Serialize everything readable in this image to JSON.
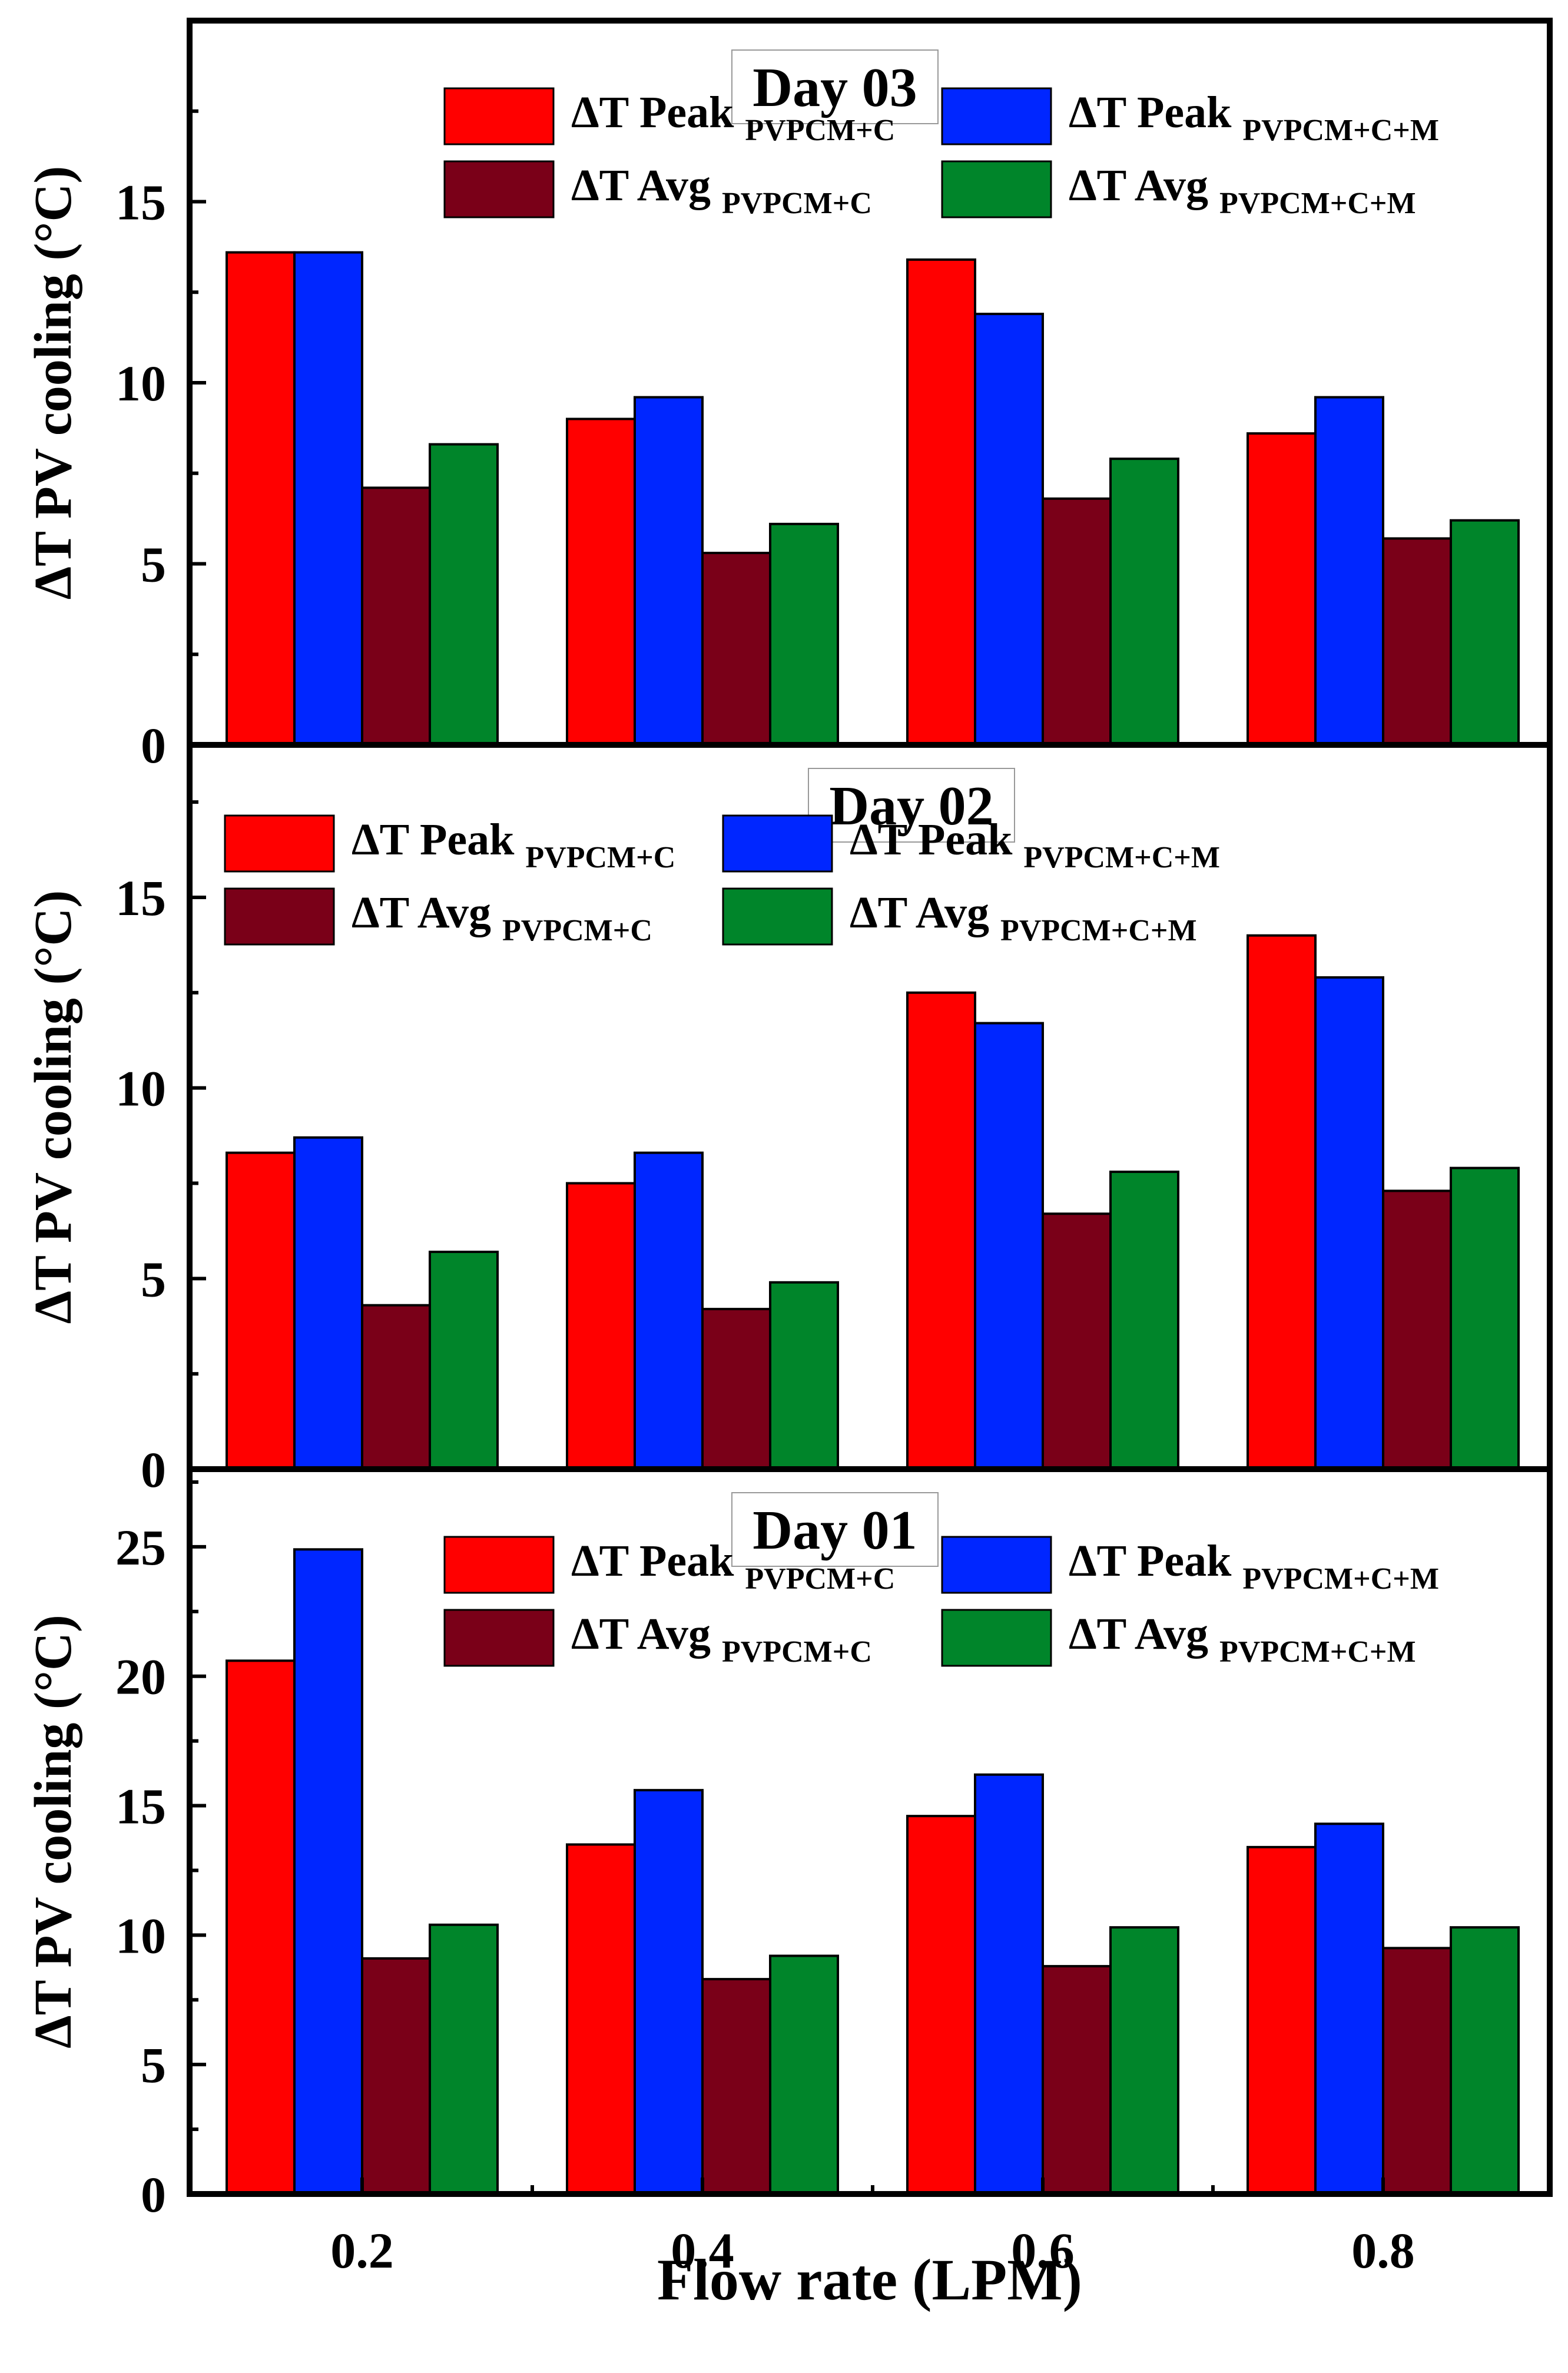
{
  "chart_data": {
    "type": "bar",
    "xlabel": "Flow rate (LPM)",
    "categories": [
      "0.2",
      "0.4",
      "0.6",
      "0.8"
    ],
    "colors": {
      "peak_c": "#ff0000",
      "peak_cm": "#0026ff",
      "avg_c": "#7a0018",
      "avg_cm": "#00852a",
      "title": "#7a0a7a"
    },
    "panels": [
      {
        "title": "Day 03",
        "ylabel": "ΔT PV cooling (°C)",
        "ylim": [
          0,
          20
        ],
        "yticks": [
          "0",
          "5",
          "10",
          "15"
        ],
        "legend_placement": "top-right",
        "series": [
          {
            "name": "ΔT Peak",
            "subscript": "PVPCM+C",
            "key": "peak_c",
            "values": [
              13.6,
              9.0,
              13.4,
              8.6
            ]
          },
          {
            "name": "ΔT Peak",
            "subscript": "PVPCM+C+M",
            "key": "peak_cm",
            "values": [
              13.6,
              9.6,
              11.9,
              9.6
            ]
          },
          {
            "name": "ΔT Avg",
            "subscript": "PVPCM+C",
            "key": "avg_c",
            "values": [
              7.1,
              5.3,
              6.8,
              5.7
            ]
          },
          {
            "name": "ΔT Avg",
            "subscript": "PVPCM+C+M",
            "key": "avg_cm",
            "values": [
              8.3,
              6.1,
              7.9,
              6.2
            ]
          }
        ]
      },
      {
        "title": "Day 02",
        "ylabel": "ΔT PV cooling (°C)",
        "ylim": [
          0,
          19
        ],
        "yticks": [
          "0",
          "5",
          "10",
          "15"
        ],
        "legend_placement": "top-left",
        "series": [
          {
            "name": "ΔT Peak",
            "subscript": "PVPCM+C",
            "key": "peak_c",
            "values": [
              8.3,
              7.5,
              12.5,
              14.0
            ]
          },
          {
            "name": "ΔT Peak",
            "subscript": "PVPCM+C+M",
            "key": "peak_cm",
            "values": [
              8.7,
              8.3,
              11.7,
              12.9
            ]
          },
          {
            "name": "ΔT Avg",
            "subscript": "PVPCM+C",
            "key": "avg_c",
            "values": [
              4.3,
              4.2,
              6.7,
              7.3
            ]
          },
          {
            "name": "ΔT Avg",
            "subscript": "PVPCM+C+M",
            "key": "avg_cm",
            "values": [
              5.7,
              4.9,
              7.8,
              7.9
            ]
          }
        ]
      },
      {
        "title": "Day 01",
        "ylabel": "ΔT PV cooling (°C)",
        "ylim": [
          0,
          28
        ],
        "yticks": [
          "0",
          "5",
          "10",
          "15",
          "20",
          "25"
        ],
        "legend_placement": "top-right",
        "series": [
          {
            "name": "ΔT Peak",
            "subscript": "PVPCM+C",
            "key": "peak_c",
            "values": [
              20.6,
              13.5,
              14.6,
              13.4
            ]
          },
          {
            "name": "ΔT Peak",
            "subscript": "PVPCM+C+M",
            "key": "peak_cm",
            "values": [
              24.9,
              15.6,
              16.2,
              14.3
            ]
          },
          {
            "name": "ΔT Avg",
            "subscript": "PVPCM+C",
            "key": "avg_c",
            "values": [
              9.1,
              8.3,
              8.8,
              9.5
            ]
          },
          {
            "name": "ΔT Avg",
            "subscript": "PVPCM+C+M",
            "key": "avg_cm",
            "values": [
              10.4,
              9.2,
              10.3,
              10.3
            ]
          }
        ]
      }
    ]
  }
}
